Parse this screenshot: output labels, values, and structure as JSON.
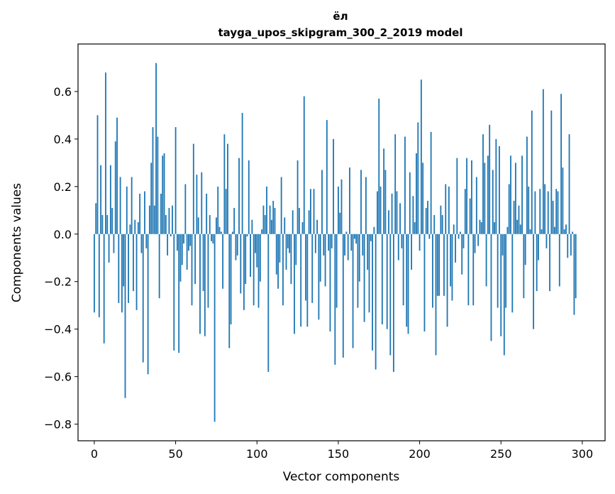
{
  "chart_data": {
    "type": "bar",
    "title": "ёл",
    "subtitle": "tayga_upos_skipgram_300_2_2019 model",
    "xlabel": "Vector components",
    "ylabel": "Components values",
    "xlim": [
      -10,
      314
    ],
    "ylim": [
      -0.87,
      0.8
    ],
    "xticks": [
      0,
      50,
      100,
      150,
      200,
      250,
      300
    ],
    "yticks": [
      -0.8,
      -0.6,
      -0.4,
      -0.2,
      0.0,
      0.2,
      0.4,
      0.6
    ],
    "ytick_labels": [
      "−0.8",
      "−0.6",
      "−0.4",
      "−0.2",
      "0.0",
      "0.2",
      "0.4",
      "0.6"
    ],
    "grid": false,
    "bar_color": "#1f77b4",
    "values": [
      -0.33,
      0.13,
      0.5,
      -0.35,
      0.29,
      0.08,
      -0.46,
      0.68,
      0.08,
      -0.12,
      0.29,
      0.11,
      -0.08,
      0.39,
      0.49,
      -0.29,
      0.24,
      -0.33,
      -0.22,
      -0.69,
      0.2,
      -0.29,
      0.04,
      0.24,
      -0.24,
      0.06,
      -0.32,
      0.05,
      0.17,
      -0.08,
      -0.54,
      0.18,
      -0.06,
      -0.59,
      0.12,
      0.3,
      0.45,
      0.12,
      0.72,
      0.41,
      -0.27,
      0.17,
      0.33,
      0.34,
      0.08,
      -0.09,
      0.11,
      -0.01,
      0.12,
      -0.49,
      0.45,
      -0.07,
      -0.5,
      -0.2,
      -0.13,
      -0.04,
      0.21,
      -0.15,
      -0.07,
      -0.05,
      -0.3,
      0.38,
      -0.21,
      0.25,
      0.07,
      -0.42,
      0.26,
      -0.24,
      -0.43,
      0.17,
      -0.31,
      0.08,
      -0.03,
      -0.04,
      -0.79,
      0.07,
      0.2,
      0.03,
      0.01,
      -0.23,
      0.42,
      0.19,
      0.38,
      -0.48,
      -0.38,
      0.01,
      0.11,
      -0.11,
      -0.09,
      0.32,
      -0.25,
      0.51,
      -0.32,
      -0.21,
      -0.01,
      0.31,
      -0.18,
      0.06,
      -0.3,
      -0.08,
      -0.14,
      -0.31,
      -0.2,
      0.02,
      0.12,
      0.08,
      0.2,
      -0.58,
      0.12,
      0.06,
      0.14,
      0.11,
      -0.17,
      -0.23,
      -0.12,
      0.24,
      -0.3,
      0.07,
      -0.15,
      -0.06,
      -0.08,
      -0.21,
      0.1,
      -0.42,
      -0.13,
      0.31,
      0.11,
      -0.39,
      0.05,
      0.58,
      -0.28,
      -0.39,
      0.1,
      0.19,
      -0.29,
      0.19,
      -0.08,
      0.06,
      -0.36,
      -0.2,
      0.27,
      -0.09,
      -0.22,
      0.48,
      -0.07,
      -0.41,
      -0.06,
      0.4,
      -0.55,
      -0.31,
      0.2,
      0.09,
      0.23,
      -0.52,
      -0.09,
      0.01,
      -0.11,
      0.28,
      -0.07,
      -0.48,
      -0.02,
      -0.04,
      -0.31,
      -0.2,
      0.27,
      -0.09,
      -0.37,
      0.24,
      -0.15,
      -0.33,
      -0.03,
      -0.49,
      0.03,
      -0.57,
      0.18,
      0.57,
      0.2,
      -0.38,
      0.36,
      0.27,
      -0.4,
      0.1,
      -0.51,
      0.17,
      -0.58,
      0.42,
      0.18,
      -0.11,
      0.13,
      -0.06,
      -0.3,
      0.41,
      -0.39,
      -0.42,
      0.26,
      -0.15,
      0.16,
      0.05,
      0.34,
      0.47,
      -0.07,
      0.65,
      0.3,
      -0.41,
      0.11,
      0.14,
      -0.02,
      0.43,
      -0.31,
      0.08,
      -0.51,
      -0.26,
      -0.26,
      0.12,
      0.08,
      -0.26,
      0.21,
      -0.39,
      0.2,
      -0.22,
      -0.28,
      0.04,
      -0.12,
      0.32,
      -0.02,
      0.01,
      -0.17,
      -0.06,
      0.19,
      0.32,
      -0.3,
      0.15,
      0.31,
      -0.3,
      -0.08,
      0.24,
      -0.05,
      0.06,
      0.05,
      0.42,
      0.3,
      -0.22,
      0.33,
      0.46,
      -0.45,
      0.27,
      0.05,
      0.4,
      -0.31,
      0.37,
      -0.43,
      -0.09,
      -0.51,
      -0.31,
      0.03,
      0.21,
      0.33,
      -0.33,
      0.14,
      0.3,
      0.06,
      0.12,
      0.04,
      0.33,
      -0.27,
      -0.13,
      0.41,
      0.2,
      0.02,
      0.52,
      -0.4,
      0.18,
      -0.24,
      -0.11,
      0.19,
      0.02,
      0.61,
      0.21,
      -0.06,
      0.18,
      -0.24,
      0.52,
      0.14,
      0.03,
      0.19,
      0.18,
      -0.22,
      0.59,
      0.28,
      0.02,
      0.04,
      -0.1,
      0.42,
      -0.09,
      0.01,
      -0.34,
      -0.27
    ]
  }
}
